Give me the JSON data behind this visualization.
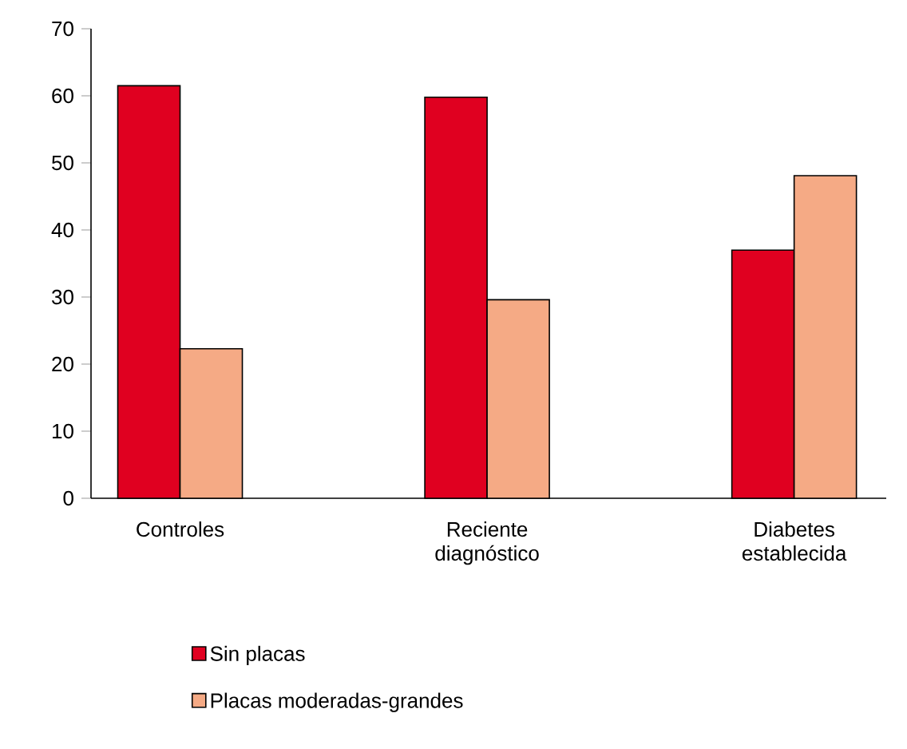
{
  "chart_data": {
    "type": "bar",
    "categories": [
      "Controles",
      "Reciente diagnóstico",
      "Diabetes establecida"
    ],
    "series": [
      {
        "name": "Sin placas",
        "color": "#e00020",
        "values": [
          61.5,
          59.8,
          37.0
        ]
      },
      {
        "name": "Placas moderadas-grandes",
        "color": "#f5aa85",
        "values": [
          22.3,
          29.6,
          48.1
        ]
      }
    ],
    "ylim": [
      0,
      70
    ],
    "yticks": [
      0,
      10,
      20,
      30,
      40,
      50,
      60,
      70
    ],
    "legend": "bottom"
  }
}
